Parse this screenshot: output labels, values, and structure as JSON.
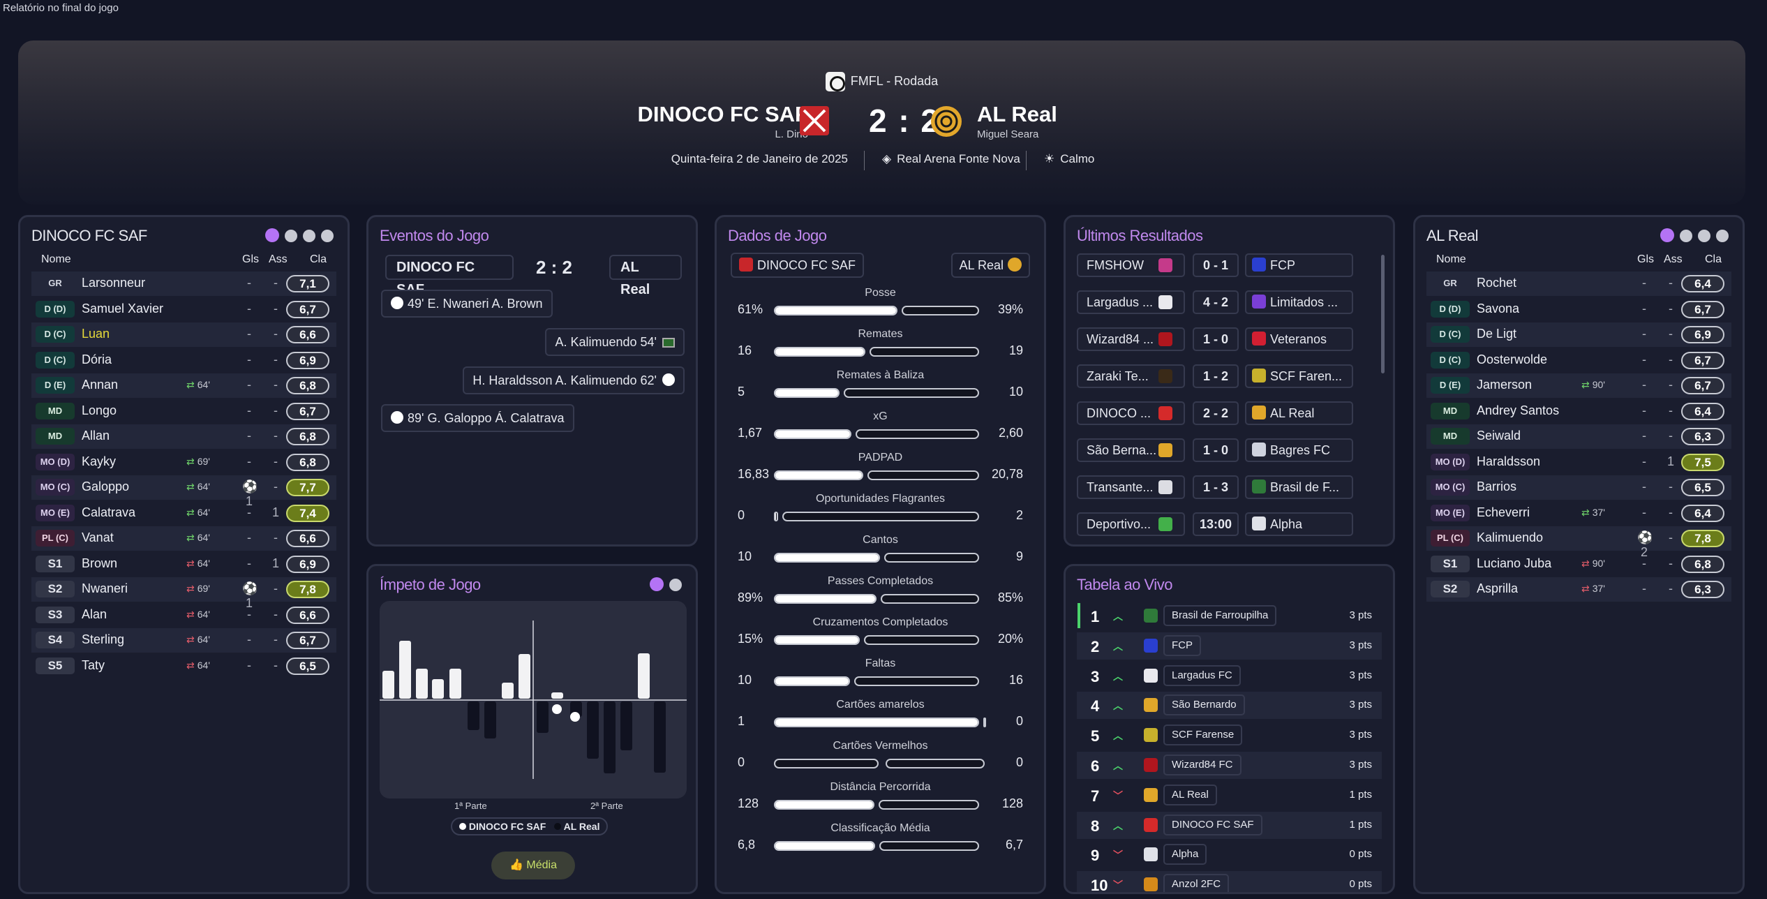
{
  "page": {
    "caption": "Relatório no final do jogo"
  },
  "header": {
    "competition": "FMFL - Rodada",
    "home_name": "DINOCO FC SAF",
    "home_manager": "L. Dino",
    "away_name": "AL Real",
    "away_manager": "Miguel Seara",
    "score": "2 : 2",
    "date": "Quinta-feira 2 de Janeiro de 2025",
    "stadium": "Real Arena Fonte Nova",
    "weather": "Calmo"
  },
  "home": {
    "title": "DINOCO FC SAF",
    "cols": {
      "name": "Nome",
      "gls": "Gls",
      "ass": "Ass",
      "cla": "Cla"
    },
    "players": [
      {
        "pos": "GR",
        "name": "Larsonneur",
        "sub": "",
        "gls": "-",
        "ass": "-",
        "rat": "7,1",
        "hi": true
      },
      {
        "pos": "D (D)",
        "name": "Samuel Xavier",
        "sub": "",
        "gls": "-",
        "ass": "-",
        "rat": "6,7"
      },
      {
        "pos": "D (C)",
        "name": "Luan",
        "sub": "",
        "gls": "-",
        "ass": "-",
        "rat": "6,6",
        "yellow": true
      },
      {
        "pos": "D (C)",
        "name": "Dória",
        "sub": "",
        "gls": "-",
        "ass": "-",
        "rat": "6,9"
      },
      {
        "pos": "D (E)",
        "name": "Annan",
        "sub": "64'",
        "gls": "-",
        "ass": "-",
        "rat": "6,8"
      },
      {
        "pos": "MD",
        "name": "Longo",
        "sub": "",
        "gls": "-",
        "ass": "-",
        "rat": "6,7"
      },
      {
        "pos": "MD",
        "name": "Allan",
        "sub": "",
        "gls": "-",
        "ass": "-",
        "rat": "6,8"
      },
      {
        "pos": "MO (D)",
        "name": "Kayky",
        "sub": "69'",
        "gls": "-",
        "ass": "-",
        "rat": "6,8"
      },
      {
        "pos": "MO (C)",
        "name": "Galoppo",
        "sub": "64'",
        "gls": "⚽1",
        "ass": "-",
        "rat": "7,7",
        "hi": true
      },
      {
        "pos": "MO (E)",
        "name": "Calatrava",
        "sub": "64'",
        "gls": "-",
        "ass": "1",
        "rat": "7,4",
        "hi": true
      },
      {
        "pos": "PL (C)",
        "name": "Vanat",
        "sub": "64'",
        "gls": "-",
        "ass": "-",
        "rat": "6,6"
      },
      {
        "pos": "S1",
        "name": "Brown",
        "sub": "64'",
        "gls": "-",
        "ass": "1",
        "rat": "6,9",
        "in": true
      },
      {
        "pos": "S2",
        "name": "Nwaneri",
        "sub": "69'",
        "gls": "⚽1",
        "ass": "-",
        "rat": "7,8",
        "hi": true,
        "in": true
      },
      {
        "pos": "S3",
        "name": "Alan",
        "sub": "64'",
        "gls": "-",
        "ass": "-",
        "rat": "6,6",
        "in": true
      },
      {
        "pos": "S4",
        "name": "Sterling",
        "sub": "64'",
        "gls": "-",
        "ass": "-",
        "rat": "6,7",
        "in": true
      },
      {
        "pos": "S5",
        "name": "Taty",
        "sub": "64'",
        "gls": "-",
        "ass": "-",
        "rat": "6,5",
        "in": true
      }
    ]
  },
  "events": {
    "title": "Eventos do Jogo",
    "home": "DINOCO FC SAF",
    "score": "2 : 2",
    "away": "AL Real",
    "list": [
      "49'  E. Nwaneri  A. Brown",
      "A. Kalimuendo  54'",
      "H. Haraldsson  A. Kalimuendo  62'",
      "89'  G. Galoppo  Á. Calatrava"
    ]
  },
  "momentum": {
    "title": "Ímpeto de Jogo",
    "half1": "1ª Parte",
    "half2": "2ª Parte",
    "legend_home": "DINOCO FC SAF",
    "legend_away": "AL Real",
    "button": "Média"
  },
  "stats": {
    "title": "Dados de Jogo",
    "home": "DINOCO FC SAF",
    "away": "AL Real",
    "rows": [
      {
        "label": "Posse",
        "h": "61%",
        "a": "39%",
        "hv": 61,
        "av": 39
      },
      {
        "label": "Remates",
        "h": "16",
        "a": "19",
        "hv": 16,
        "av": 19
      },
      {
        "label": "Remates à Baliza",
        "h": "5",
        "a": "10",
        "hv": 5,
        "av": 10
      },
      {
        "label": "xG",
        "h": "1,67",
        "a": "2,60",
        "hv": 1.67,
        "av": 2.6
      },
      {
        "label": "PADPAD",
        "h": "16,83",
        "a": "20,78",
        "hv": 16.83,
        "av": 20.78
      },
      {
        "label": "Oportunidades Flagrantes",
        "h": "0",
        "a": "2",
        "hv": 0,
        "av": 2
      },
      {
        "label": "Cantos",
        "h": "10",
        "a": "9",
        "hv": 10,
        "av": 9
      },
      {
        "label": "Passes Completados",
        "h": "89%",
        "a": "85%",
        "hv": 89,
        "av": 85
      },
      {
        "label": "Cruzamentos Completados",
        "h": "15%",
        "a": "20%",
        "hv": 15,
        "av": 20
      },
      {
        "label": "Faltas",
        "h": "10",
        "a": "16",
        "hv": 10,
        "av": 16
      },
      {
        "label": "Cartões amarelos",
        "h": "1",
        "a": "0",
        "hv": 1,
        "av": 0
      },
      {
        "label": "Cartões Vermelhos",
        "h": "0",
        "a": "0",
        "hv": 0,
        "av": 0
      },
      {
        "label": "Distância Percorrida",
        "h": "128",
        "a": "128",
        "hv": 128,
        "av": 128
      },
      {
        "label": "Classificação Média",
        "h": "6,8",
        "a": "6,7",
        "hv": 6.8,
        "av": 6.7
      }
    ]
  },
  "results": {
    "title": "Últimos Resultados",
    "list": [
      {
        "h": "FMSHOW",
        "s": "0 - 1",
        "a": "FCP",
        "hc": "#c53a8a",
        "ac": "#2a3fd0"
      },
      {
        "h": "Largadus ...",
        "s": "4 - 2",
        "a": "Limitados ...",
        "hc": "#e9e9ee",
        "ac": "#7a3fd6"
      },
      {
        "h": "Wizard84 ...",
        "s": "1 - 0",
        "a": "Veteranos",
        "hc": "#b0161e",
        "ac": "#d21f32"
      },
      {
        "h": "Zaraki Te...",
        "s": "1 - 2",
        "a": "SCF Faren...",
        "hc": "#3a2a18",
        "ac": "#c7b12c"
      },
      {
        "h": "DINOCO ...",
        "s": "2 - 2",
        "a": "AL Real",
        "hc": "#d52a2a",
        "ac": "#e0a72a"
      },
      {
        "h": "São Berna...",
        "s": "1 - 0",
        "a": "Bagres FC",
        "hc": "#e0a72a",
        "ac": "#cfd3df"
      },
      {
        "h": "Transante...",
        "s": "1 - 3",
        "a": "Brasil de F...",
        "hc": "#dcdde3",
        "ac": "#2f7a3a"
      },
      {
        "h": "Deportivo...",
        "s": "13:00",
        "a": "Alpha",
        "hc": "#43b04a",
        "ac": "#dfe1e8"
      }
    ]
  },
  "table": {
    "title": "Tabela ao Vivo",
    "rows": [
      {
        "n": "1",
        "d": "up",
        "name": "Brasil de Farroupilha",
        "pts": "3 pts",
        "c": "#2f7a3a"
      },
      {
        "n": "2",
        "d": "up",
        "name": "FCP",
        "pts": "3 pts",
        "c": "#2a3fd0"
      },
      {
        "n": "3",
        "d": "up",
        "name": "Largadus FC",
        "pts": "3 pts",
        "c": "#e9e9ee"
      },
      {
        "n": "4",
        "d": "up",
        "name": "São Bernardo",
        "pts": "3 pts",
        "c": "#e0a72a"
      },
      {
        "n": "5",
        "d": "up",
        "name": "SCF Farense",
        "pts": "3 pts",
        "c": "#c7b12c"
      },
      {
        "n": "6",
        "d": "up",
        "name": "Wizard84 FC",
        "pts": "3 pts",
        "c": "#b0161e"
      },
      {
        "n": "7",
        "d": "dn",
        "name": "AL Real",
        "pts": "1 pts",
        "c": "#e0a72a"
      },
      {
        "n": "8",
        "d": "up",
        "name": "DINOCO FC SAF",
        "pts": "1 pts",
        "c": "#d52a2a"
      },
      {
        "n": "9",
        "d": "dn",
        "name": "Alpha",
        "pts": "0 pts",
        "c": "#dfe1e8"
      },
      {
        "n": "10",
        "d": "dn",
        "name": "Anzol 2FC",
        "pts": "0 pts",
        "c": "#d58a1a"
      }
    ]
  },
  "away": {
    "title": "AL Real",
    "cols": {
      "name": "Nome",
      "gls": "Gls",
      "ass": "Ass",
      "cla": "Cla"
    },
    "players": [
      {
        "pos": "GR",
        "name": "Rochet",
        "sub": "",
        "gls": "-",
        "ass": "-",
        "rat": "6,4"
      },
      {
        "pos": "D (D)",
        "name": "Savona",
        "sub": "",
        "gls": "-",
        "ass": "-",
        "rat": "6,7"
      },
      {
        "pos": "D (C)",
        "name": "De Ligt",
        "sub": "",
        "gls": "-",
        "ass": "-",
        "rat": "6,9"
      },
      {
        "pos": "D (C)",
        "name": "Oosterwolde",
        "sub": "",
        "gls": "-",
        "ass": "-",
        "rat": "6,7"
      },
      {
        "pos": "D (E)",
        "name": "Jamerson",
        "sub": "90'",
        "gls": "-",
        "ass": "-",
        "rat": "6,7"
      },
      {
        "pos": "MD",
        "name": "Andrey Santos",
        "sub": "",
        "gls": "-",
        "ass": "-",
        "rat": "6,4"
      },
      {
        "pos": "MD",
        "name": "Seiwald",
        "sub": "",
        "gls": "-",
        "ass": "-",
        "rat": "6,3"
      },
      {
        "pos": "MO (D)",
        "name": "Haraldsson",
        "sub": "",
        "gls": "-",
        "ass": "1",
        "rat": "7,5",
        "hi": true
      },
      {
        "pos": "MO (C)",
        "name": "Barrios",
        "sub": "",
        "gls": "-",
        "ass": "-",
        "rat": "6,5"
      },
      {
        "pos": "MO (E)",
        "name": "Echeverri",
        "sub": "37'",
        "gls": "-",
        "ass": "-",
        "rat": "6,4"
      },
      {
        "pos": "PL (C)",
        "name": "Kalimuendo",
        "sub": "",
        "gls": "⚽2",
        "ass": "-",
        "rat": "7,8",
        "hi": true
      },
      {
        "pos": "S1",
        "name": "Luciano Juba",
        "sub": "90'",
        "gls": "-",
        "ass": "-",
        "rat": "6,8",
        "in": true
      },
      {
        "pos": "S2",
        "name": "Asprilla",
        "sub": "37'",
        "gls": "-",
        "ass": "-",
        "rat": "6,3",
        "in": true
      }
    ]
  }
}
